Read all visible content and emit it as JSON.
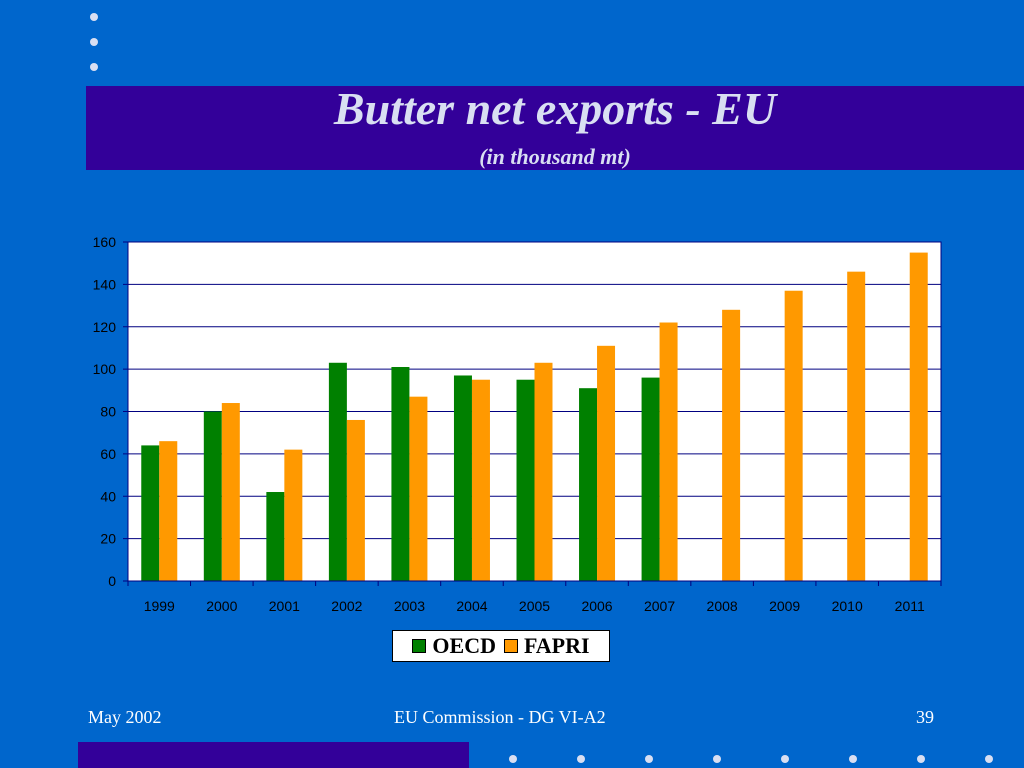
{
  "slide": {
    "title": "Butter net exports - EU",
    "subtitle": "(in thousand mt)",
    "footer_left": "May 2002",
    "footer_center": "EU Commission - DG VI-A2",
    "footer_right": "39"
  },
  "colors": {
    "background": "#0066cc",
    "band": "#330099",
    "title_text": "#d9dff2",
    "oecd": "#008000",
    "fapri": "#ff9900",
    "grid": "#000080"
  },
  "chart_data": {
    "type": "bar",
    "title": "",
    "xlabel": "",
    "ylabel": "",
    "ylim": [
      0,
      160
    ],
    "yticks": [
      0,
      20,
      40,
      60,
      80,
      100,
      120,
      140,
      160
    ],
    "grid": true,
    "legend_position": "bottom",
    "categories": [
      "1999",
      "2000",
      "2001",
      "2002",
      "2003",
      "2004",
      "2005",
      "2006",
      "2007",
      "2008",
      "2009",
      "2010",
      "2011"
    ],
    "series": [
      {
        "name": "OECD",
        "color": "#008000",
        "values": [
          64,
          80,
          42,
          103,
          101,
          97,
          95,
          91,
          96,
          null,
          null,
          null,
          null
        ]
      },
      {
        "name": "FAPRI",
        "color": "#ff9900",
        "values": [
          66,
          84,
          62,
          76,
          87,
          95,
          103,
          111,
          122,
          128,
          137,
          146,
          155
        ]
      }
    ]
  }
}
